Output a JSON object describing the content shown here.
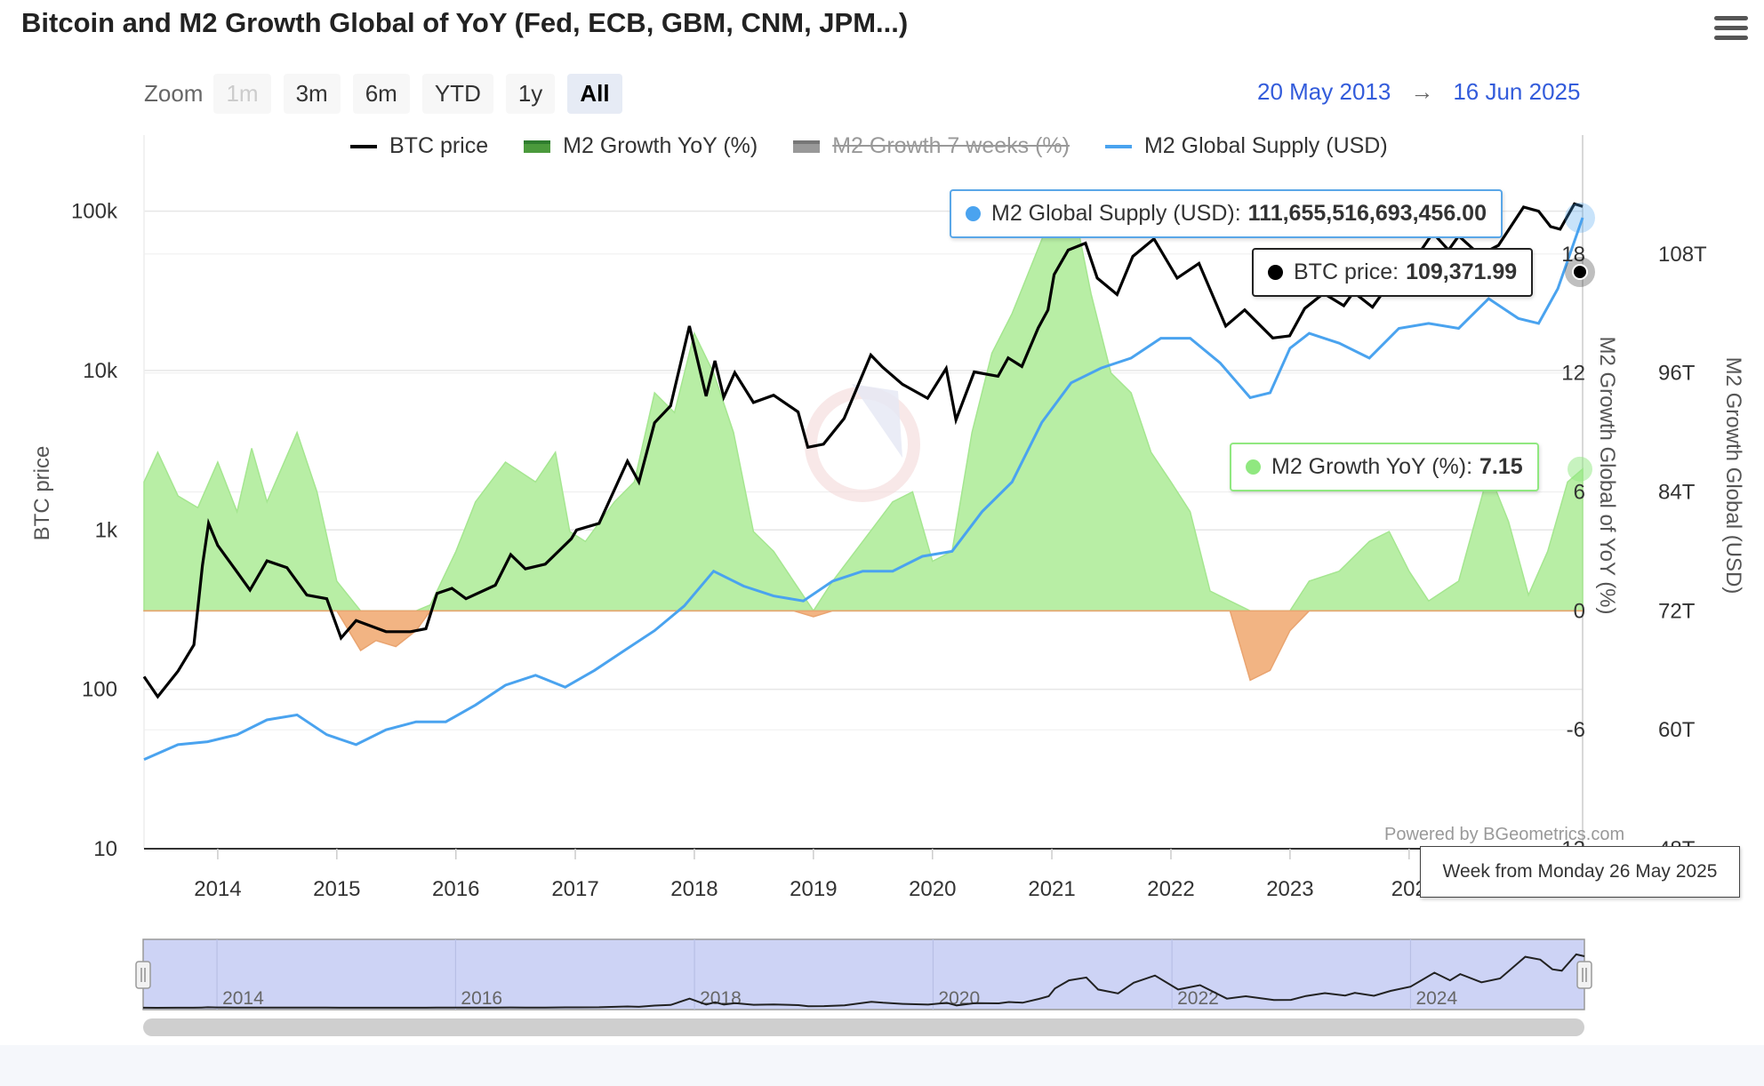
{
  "title": "Bitcoin and M2 Growth Global of YoY (Fed, ECB, GBM, CNM, JPM...)",
  "zoom": {
    "label": "Zoom",
    "buttons": [
      {
        "label": "1m",
        "state": "disabled"
      },
      {
        "label": "3m",
        "state": "normal"
      },
      {
        "label": "6m",
        "state": "normal"
      },
      {
        "label": "YTD",
        "state": "normal"
      },
      {
        "label": "1y",
        "state": "normal"
      },
      {
        "label": "All",
        "state": "active"
      }
    ]
  },
  "range": {
    "from": "20 May 2013",
    "arrow": "→",
    "to": "16 Jun 2025"
  },
  "legend": [
    {
      "label": "BTC price",
      "color": "#000000",
      "kind": "line",
      "visible": true
    },
    {
      "label": "M2 Growth YoY (%)",
      "color": "#4b9a3c",
      "kind": "area",
      "visible": true
    },
    {
      "label": "M2 Growth 7 weeks (%)",
      "color": "#999999",
      "kind": "area",
      "visible": false
    },
    {
      "label": "M2 Global Supply (USD)",
      "color": "#4aa3ef",
      "kind": "line",
      "visible": true
    }
  ],
  "tooltips": {
    "m2_supply": {
      "label": "M2 Global Supply (USD):",
      "value": "111,655,516,693,456.00",
      "color": "#4aa3ef"
    },
    "btc": {
      "label": "BTC price:",
      "value": "109,371.99",
      "color": "#000000"
    },
    "m2_growth": {
      "label": "M2 Growth YoY (%):",
      "value": "7.15",
      "color": "#90e880"
    }
  },
  "date_tooltip": "Week from Monday 26 May 2025",
  "credit": "Powered by BGeometrics.com",
  "navigator": {
    "labels": [
      "2014",
      "2016",
      "2018",
      "2020",
      "2022",
      "2024"
    ]
  },
  "chart_data": {
    "type": "line",
    "x_axis": {
      "ticks": [
        "2014",
        "2015",
        "2016",
        "2017",
        "2018",
        "2019",
        "2020",
        "2021",
        "2022",
        "2023",
        "202"
      ],
      "range": [
        "2013-05-20",
        "2025-06-16"
      ]
    },
    "y_axes": [
      {
        "id": "btc",
        "title": "BTC price",
        "scale": "log",
        "range": [
          10,
          300000
        ],
        "tick_labels": [
          "10",
          "100",
          "1k",
          "10k",
          "100k"
        ],
        "tick_values": [
          10,
          100,
          1000,
          10000,
          100000
        ]
      },
      {
        "id": "growth",
        "title": "M2 Growth Global of YoY (%)",
        "range": [
          -12,
          24
        ],
        "tick_labels": [
          "-12",
          "-6",
          "0",
          "6",
          "12",
          "18"
        ],
        "tick_values": [
          -12,
          -6,
          0,
          6,
          12,
          18
        ]
      },
      {
        "id": "supply",
        "title": "M2 Growth Global (USD)",
        "unit": "T",
        "range": [
          48,
          120
        ],
        "tick_labels": [
          "48T",
          "60T",
          "72T",
          "84T",
          "96T",
          "108T"
        ],
        "tick_values": [
          48,
          60,
          72,
          84,
          96,
          108
        ]
      }
    ],
    "series": [
      {
        "name": "BTC price",
        "axis": "btc",
        "color": "#000000",
        "points": [
          [
            "2013-05-20",
            120
          ],
          [
            "2013-07-01",
            90
          ],
          [
            "2013-09-01",
            130
          ],
          [
            "2013-10-20",
            190
          ],
          [
            "2013-11-15",
            600
          ],
          [
            "2013-12-04",
            1100
          ],
          [
            "2014-01-01",
            800
          ],
          [
            "2014-02-25",
            560
          ],
          [
            "2014-04-10",
            420
          ],
          [
            "2014-06-01",
            640
          ],
          [
            "2014-08-01",
            580
          ],
          [
            "2014-10-01",
            390
          ],
          [
            "2014-12-01",
            370
          ],
          [
            "2015-01-14",
            210
          ],
          [
            "2015-03-01",
            270
          ],
          [
            "2015-06-01",
            230
          ],
          [
            "2015-08-15",
            230
          ],
          [
            "2015-10-01",
            240
          ],
          [
            "2015-11-04",
            400
          ],
          [
            "2015-12-20",
            430
          ],
          [
            "2016-02-01",
            370
          ],
          [
            "2016-05-01",
            450
          ],
          [
            "2016-06-17",
            700
          ],
          [
            "2016-08-01",
            570
          ],
          [
            "2016-10-01",
            610
          ],
          [
            "2016-12-20",
            880
          ],
          [
            "2017-01-05",
            1000
          ],
          [
            "2017-03-15",
            1100
          ],
          [
            "2017-06-10",
            2700
          ],
          [
            "2017-07-15",
            2000
          ],
          [
            "2017-09-01",
            4700
          ],
          [
            "2017-10-20",
            6000
          ],
          [
            "2017-12-17",
            19000
          ],
          [
            "2018-02-06",
            6900
          ],
          [
            "2018-03-05",
            11500
          ],
          [
            "2018-04-01",
            6800
          ],
          [
            "2018-05-05",
            9700
          ],
          [
            "2018-07-01",
            6300
          ],
          [
            "2018-09-01",
            7000
          ],
          [
            "2018-11-15",
            5500
          ],
          [
            "2018-12-15",
            3300
          ],
          [
            "2019-02-01",
            3450
          ],
          [
            "2019-04-05",
            5000
          ],
          [
            "2019-06-26",
            12500
          ],
          [
            "2019-08-01",
            10500
          ],
          [
            "2019-10-01",
            8200
          ],
          [
            "2019-12-17",
            6700
          ],
          [
            "2020-02-12",
            10300
          ],
          [
            "2020-03-13",
            4900
          ],
          [
            "2020-05-08",
            9800
          ],
          [
            "2020-07-20",
            9200
          ],
          [
            "2020-08-20",
            12000
          ],
          [
            "2020-10-01",
            10600
          ],
          [
            "2020-11-20",
            18500
          ],
          [
            "2020-12-20",
            24000
          ],
          [
            "2021-01-08",
            40000
          ],
          [
            "2021-02-20",
            57000
          ],
          [
            "2021-04-14",
            63000
          ],
          [
            "2021-05-20",
            38000
          ],
          [
            "2021-07-20",
            30000
          ],
          [
            "2021-09-06",
            52000
          ],
          [
            "2021-11-10",
            67000
          ],
          [
            "2022-01-20",
            38000
          ],
          [
            "2022-03-28",
            47000
          ],
          [
            "2022-06-18",
            19000
          ],
          [
            "2022-08-15",
            24000
          ],
          [
            "2022-11-09",
            16000
          ],
          [
            "2022-12-31",
            16500
          ],
          [
            "2023-02-15",
            24500
          ],
          [
            "2023-04-14",
            30500
          ],
          [
            "2023-06-15",
            25500
          ],
          [
            "2023-07-15",
            31000
          ],
          [
            "2023-09-11",
            25000
          ],
          [
            "2023-11-01",
            35000
          ],
          [
            "2024-01-01",
            44000
          ],
          [
            "2024-03-14",
            73000
          ],
          [
            "2024-05-01",
            57000
          ],
          [
            "2024-06-01",
            70000
          ],
          [
            "2024-08-05",
            53000
          ],
          [
            "2024-10-01",
            61000
          ],
          [
            "2024-12-17",
            106000
          ],
          [
            "2025-02-01",
            100000
          ],
          [
            "2025-03-10",
            80000
          ],
          [
            "2025-04-08",
            77000
          ],
          [
            "2025-05-22",
            111000
          ],
          [
            "2025-06-16",
            107000
          ]
        ]
      },
      {
        "name": "M2 Growth YoY (%)",
        "axis": "growth",
        "kind": "area",
        "color_positive": "#b8eea5",
        "color_negative": "#f2b483",
        "points": [
          [
            "2013-05-20",
            6.5
          ],
          [
            "2013-07-01",
            8.0
          ],
          [
            "2013-09-01",
            5.8
          ],
          [
            "2013-11-01",
            5.2
          ],
          [
            "2014-01-01",
            7.5
          ],
          [
            "2014-03-01",
            5.0
          ],
          [
            "2014-04-15",
            8.2
          ],
          [
            "2014-06-01",
            5.5
          ],
          [
            "2014-09-01",
            9.0
          ],
          [
            "2014-11-01",
            6.0
          ],
          [
            "2015-01-01",
            1.5
          ],
          [
            "2015-03-15",
            -2.0
          ],
          [
            "2015-05-01",
            -1.5
          ],
          [
            "2015-07-01",
            -1.8
          ],
          [
            "2015-09-01",
            -1.0
          ],
          [
            "2015-10-15",
            0.3
          ],
          [
            "2016-01-01",
            3.0
          ],
          [
            "2016-03-01",
            5.5
          ],
          [
            "2016-06-01",
            7.5
          ],
          [
            "2016-09-01",
            6.5
          ],
          [
            "2016-11-01",
            8.0
          ],
          [
            "2016-12-15",
            4.0
          ],
          [
            "2017-02-01",
            3.5
          ],
          [
            "2017-05-01",
            5.5
          ],
          [
            "2017-07-01",
            6.5
          ],
          [
            "2017-09-01",
            11.0
          ],
          [
            "2017-11-01",
            10.0
          ],
          [
            "2018-01-01",
            14.0
          ],
          [
            "2018-03-01",
            12.0
          ],
          [
            "2018-05-01",
            9.0
          ],
          [
            "2018-07-01",
            4.0
          ],
          [
            "2018-09-01",
            3.0
          ],
          [
            "2018-11-01",
            1.5
          ],
          [
            "2019-01-01",
            -0.3
          ],
          [
            "2019-03-01",
            1.5
          ],
          [
            "2019-06-01",
            3.5
          ],
          [
            "2019-09-01",
            5.5
          ],
          [
            "2019-11-01",
            6.0
          ],
          [
            "2020-01-01",
            2.5
          ],
          [
            "2020-03-01",
            3.0
          ],
          [
            "2020-05-01",
            9.0
          ],
          [
            "2020-07-01",
            13.0
          ],
          [
            "2020-09-01",
            15.0
          ],
          [
            "2020-11-01",
            17.5
          ],
          [
            "2021-01-01",
            20.0
          ],
          [
            "2021-03-01",
            21.0
          ],
          [
            "2021-05-01",
            16.0
          ],
          [
            "2021-07-01",
            12.0
          ],
          [
            "2021-09-01",
            11.0
          ],
          [
            "2021-11-01",
            8.0
          ],
          [
            "2022-01-01",
            6.5
          ],
          [
            "2022-03-01",
            5.0
          ],
          [
            "2022-05-01",
            1.0
          ],
          [
            "2022-07-01",
            0.5
          ],
          [
            "2022-09-01",
            -3.5
          ],
          [
            "2022-11-01",
            -3.0
          ],
          [
            "2023-01-01",
            -1.0
          ],
          [
            "2023-03-01",
            1.5
          ],
          [
            "2023-06-01",
            2.0
          ],
          [
            "2023-09-01",
            3.5
          ],
          [
            "2023-11-01",
            4.0
          ],
          [
            "2024-01-01",
            2.0
          ],
          [
            "2024-03-01",
            0.5
          ],
          [
            "2024-06-01",
            1.5
          ],
          [
            "2024-09-01",
            7.0
          ],
          [
            "2024-11-01",
            4.5
          ],
          [
            "2025-01-01",
            0.8
          ],
          [
            "2025-03-01",
            3.0
          ],
          [
            "2025-05-01",
            6.5
          ],
          [
            "2025-06-16",
            7.15
          ]
        ]
      },
      {
        "name": "M2 Global Supply (USD)",
        "axis": "supply",
        "color": "#4aa3ef",
        "points": [
          [
            "2013-05-20",
            57.0
          ],
          [
            "2013-09-01",
            58.5
          ],
          [
            "2013-12-01",
            58.8
          ],
          [
            "2014-03-01",
            59.5
          ],
          [
            "2014-06-01",
            61.0
          ],
          [
            "2014-09-01",
            61.5
          ],
          [
            "2014-12-01",
            59.5
          ],
          [
            "2015-03-01",
            58.5
          ],
          [
            "2015-06-01",
            60.0
          ],
          [
            "2015-09-01",
            60.8
          ],
          [
            "2015-12-01",
            60.8
          ],
          [
            "2016-03-01",
            62.5
          ],
          [
            "2016-06-01",
            64.5
          ],
          [
            "2016-09-01",
            65.5
          ],
          [
            "2016-12-01",
            64.3
          ],
          [
            "2017-03-01",
            66.0
          ],
          [
            "2017-06-01",
            68.0
          ],
          [
            "2017-09-01",
            70.0
          ],
          [
            "2017-12-01",
            72.5
          ],
          [
            "2018-03-01",
            76.0
          ],
          [
            "2018-06-01",
            74.5
          ],
          [
            "2018-09-01",
            73.5
          ],
          [
            "2018-12-01",
            73.0
          ],
          [
            "2019-03-01",
            75.0
          ],
          [
            "2019-06-01",
            76.0
          ],
          [
            "2019-09-01",
            76.0
          ],
          [
            "2019-12-01",
            77.5
          ],
          [
            "2020-03-01",
            78.0
          ],
          [
            "2020-06-01",
            82.0
          ],
          [
            "2020-09-01",
            85.0
          ],
          [
            "2020-12-01",
            91.0
          ],
          [
            "2021-03-01",
            95.0
          ],
          [
            "2021-06-01",
            96.5
          ],
          [
            "2021-09-01",
            97.5
          ],
          [
            "2021-12-01",
            99.5
          ],
          [
            "2022-03-01",
            99.5
          ],
          [
            "2022-06-01",
            97.0
          ],
          [
            "2022-09-01",
            93.5
          ],
          [
            "2022-11-01",
            94.0
          ],
          [
            "2023-01-01",
            98.5
          ],
          [
            "2023-03-01",
            100.0
          ],
          [
            "2023-06-01",
            99.0
          ],
          [
            "2023-09-01",
            97.5
          ],
          [
            "2023-12-01",
            100.5
          ],
          [
            "2024-03-01",
            101.0
          ],
          [
            "2024-06-01",
            100.5
          ],
          [
            "2024-09-01",
            103.5
          ],
          [
            "2024-12-01",
            101.5
          ],
          [
            "2025-02-01",
            101.0
          ],
          [
            "2025-04-01",
            104.5
          ],
          [
            "2025-06-16",
            111.66
          ]
        ]
      }
    ]
  }
}
